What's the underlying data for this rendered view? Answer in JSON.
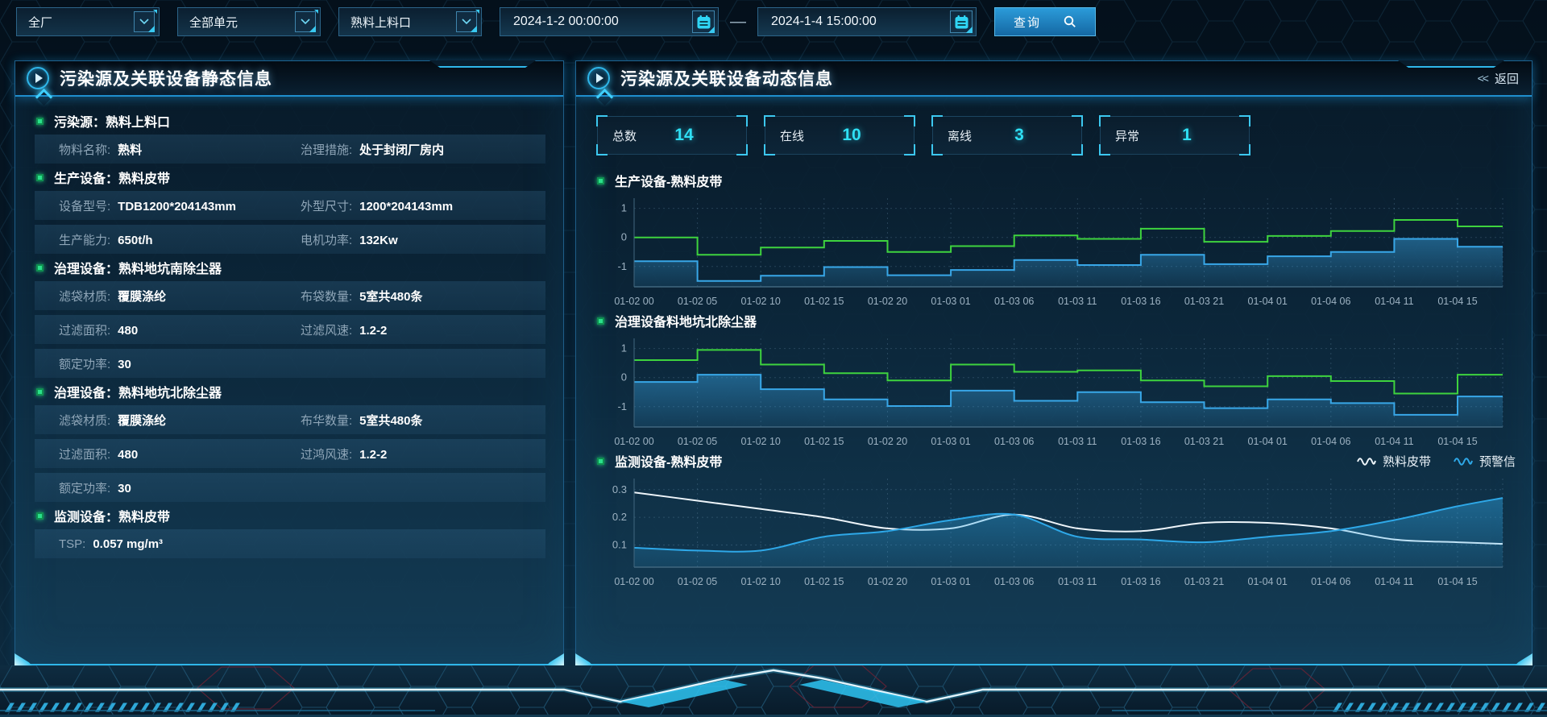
{
  "colors": {
    "accent_cyan": "#2fe0f5",
    "border_blue": "#2c6488",
    "green_line": "#3ed33e",
    "blue_line": "#38a7e8",
    "white_line": "#eef5fa",
    "bullet_green": "#2ae08a"
  },
  "toolbar": {
    "selects": [
      {
        "value": "全厂"
      },
      {
        "value": "全部单元"
      },
      {
        "value": "熟料上料口"
      }
    ],
    "date_start": "2024-1-2 00:00:00",
    "date_separator": "—",
    "date_end": "2024-1-4 15:00:00",
    "search_label": "查询"
  },
  "left_panel": {
    "title": "污染源及关联设备静态信息",
    "sections": [
      {
        "heading": "污染源：熟料上料口",
        "rows": [
          [
            {
              "label": "物料名称:",
              "value": "熟料"
            },
            {
              "label": "治理措施:",
              "value": "处于封闭厂房内"
            }
          ]
        ]
      },
      {
        "heading": "生产设备：熟料皮带",
        "rows": [
          [
            {
              "label": "设备型号:",
              "value": "TDB1200*204143mm"
            },
            {
              "label": "外型尺寸:",
              "value": "1200*204143mm"
            }
          ],
          [
            {
              "label": "生产能力:",
              "value": "650t/h"
            },
            {
              "label": "电机功率:",
              "value": "132Kw"
            }
          ]
        ]
      },
      {
        "heading": "治理设备：熟料地坑南除尘器",
        "rows": [
          [
            {
              "label": "滤袋材质:",
              "value": "覆膜涤纶"
            },
            {
              "label": "布袋数量:",
              "value": "5室共480条"
            }
          ],
          [
            {
              "label": "过滤面积:",
              "value": "480"
            },
            {
              "label": "过滤风速:",
              "value": "1.2-2"
            }
          ],
          [
            {
              "label": "额定功率:",
              "value": "30"
            }
          ]
        ]
      },
      {
        "heading": "治理设备：熟料地坑北除尘器",
        "rows": [
          [
            {
              "label": "滤袋材质:",
              "value": "覆膜涤纶"
            },
            {
              "label": "布华数量:",
              "value": "5室共480条"
            }
          ],
          [
            {
              "label": "过滤面积:",
              "value": "480"
            },
            {
              "label": "过鸿风速:",
              "value": "1.2-2"
            }
          ],
          [
            {
              "label": "额定功率:",
              "value": "30"
            }
          ]
        ]
      },
      {
        "heading": "监测设备：熟料皮带",
        "rows": [
          [
            {
              "label": "TSP:",
              "value": "0.057 mg/m³"
            }
          ]
        ]
      }
    ]
  },
  "right_panel": {
    "title": "污染源及关联设备动态信息",
    "back_icon": "<<",
    "back_label": "返回",
    "stats": [
      {
        "label": "总数",
        "value": "14"
      },
      {
        "label": "在线",
        "value": "10"
      },
      {
        "label": "离线",
        "value": "3"
      },
      {
        "label": "异常",
        "value": "1"
      }
    ]
  },
  "chart_data": [
    {
      "type": "step",
      "title": "生产设备-熟料皮带",
      "categories": [
        "01-02 00",
        "01-02 05",
        "01-02 10",
        "01-02 15",
        "01-02 20",
        "01-03 01",
        "01-03 06",
        "01-03 11",
        "01-03 16",
        "01-03 21",
        "01-04 01",
        "01-04 06",
        "01-04 11",
        "01-04 15"
      ],
      "yticks": [
        1,
        0,
        -1
      ],
      "ylim": [
        -1.7,
        1.35
      ],
      "grid": true,
      "series": [
        {
          "name": "运行状态-绿",
          "color": "#3ed33e",
          "values": [
            0,
            -0.6,
            -0.35,
            -0.12,
            -0.5,
            -0.3,
            0.07,
            -0.05,
            0.3,
            -0.15,
            0.05,
            0.22,
            0.6,
            0.38
          ]
        },
        {
          "name": "运行状态-蓝",
          "color": "#38a7e8",
          "area": true,
          "values": [
            -0.82,
            -1.5,
            -1.32,
            -1.02,
            -1.3,
            -1.12,
            -0.78,
            -0.95,
            -0.6,
            -0.92,
            -0.65,
            -0.5,
            -0.05,
            -0.32
          ]
        }
      ]
    },
    {
      "type": "step",
      "title": "治理设备料地坑北除尘器",
      "categories": [
        "01-02 00",
        "01-02 05",
        "01-02 10",
        "01-02 15",
        "01-02 20",
        "01-03 01",
        "01-03 06",
        "01-03 11",
        "01-03 16",
        "01-03 21",
        "01-04 01",
        "01-04 06",
        "01-04 11",
        "01-04 15"
      ],
      "yticks": [
        1,
        0,
        -1
      ],
      "ylim": [
        -1.7,
        1.35
      ],
      "grid": true,
      "series": [
        {
          "name": "运行状态-绿",
          "color": "#3ed33e",
          "values": [
            0.6,
            0.95,
            0.45,
            0.15,
            -0.1,
            0.45,
            0.2,
            0.25,
            -0.1,
            -0.3,
            0.05,
            -0.12,
            -0.55,
            0.1
          ]
        },
        {
          "name": "运行状态-蓝",
          "color": "#38a7e8",
          "area": true,
          "values": [
            -0.15,
            0.1,
            -0.4,
            -0.75,
            -0.98,
            -0.45,
            -0.8,
            -0.5,
            -0.85,
            -1.05,
            -0.75,
            -0.88,
            -1.28,
            -0.65
          ]
        }
      ]
    },
    {
      "type": "smooth",
      "title": "监测设备-熟料皮带",
      "categories": [
        "01-02 00",
        "01-02 05",
        "01-02 10",
        "01-02 15",
        "01-02 20",
        "01-03 01",
        "01-03 06",
        "01-03 11",
        "01-03 16",
        "01-03 21",
        "01-04 01",
        "01-04 06",
        "01-04 11",
        "01-04 15"
      ],
      "yticks": [
        0.3,
        0.2,
        0.1
      ],
      "ylim": [
        0.02,
        0.34
      ],
      "grid": true,
      "legend": [
        {
          "label": "熟料皮带",
          "color": "#eef5fa"
        },
        {
          "label": "预警信",
          "color": "#2ea8e8"
        }
      ],
      "series": [
        {
          "name": "熟料皮带",
          "color": "#eef5fa",
          "values": [
            0.29,
            0.26,
            0.23,
            0.2,
            0.16,
            0.16,
            0.21,
            0.16,
            0.15,
            0.18,
            0.18,
            0.16,
            0.12,
            0.11
          ]
        },
        {
          "name": "预警信",
          "color": "#2ea8e8",
          "area": true,
          "values": [
            0.09,
            0.08,
            0.08,
            0.13,
            0.15,
            0.19,
            0.21,
            0.13,
            0.12,
            0.11,
            0.13,
            0.15,
            0.19,
            0.24
          ]
        }
      ]
    }
  ]
}
